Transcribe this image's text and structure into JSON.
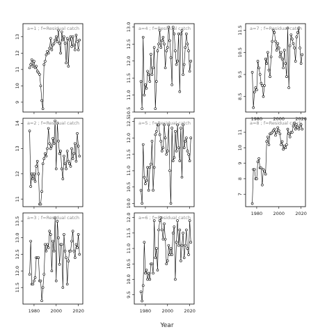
{
  "figure": {
    "xlabel": "Year",
    "panel_label_suffix": "f=Residual catch"
  },
  "chart_data": [
    {
      "type": "line",
      "label": "a=1 ; f=Residual catch",
      "xlim": [
        1970,
        2024
      ],
      "ylim": [
        8.4,
        13.8
      ],
      "xticks": [
        1980,
        2000,
        2020
      ],
      "yticks": [
        9,
        10,
        11,
        12,
        13
      ],
      "x": [
        1976,
        1977,
        1978,
        1979,
        1980,
        1981,
        1982,
        1983,
        1984,
        1985,
        1986,
        1987,
        1988,
        1989,
        1990,
        1991,
        1992,
        1993,
        1994,
        1995,
        1996,
        1997,
        1998,
        1999,
        2000,
        2001,
        2002,
        2003,
        2004,
        2005,
        2006,
        2007,
        2008,
        2009,
        2010,
        2011,
        2012,
        2013,
        2014,
        2015,
        2016,
        2017,
        2018,
        2019,
        2020,
        2021
      ],
      "y": [
        11.1,
        11.3,
        11.6,
        11.2,
        11.5,
        11.1,
        11.2,
        10.9,
        10.8,
        10.7,
        10.0,
        9.1,
        8.6,
        11.3,
        11.5,
        11.9,
        12.1,
        12.0,
        12.3,
        12.9,
        12.2,
        12.5,
        12.6,
        12.8,
        13.0,
        12.7,
        13.4,
        12.6,
        12.0,
        13.3,
        12.8,
        13.0,
        12.6,
        11.4,
        12.9,
        11.2,
        12.8,
        13.0,
        12.4,
        13.0,
        12.5,
        12.2,
        13.1,
        12.7,
        12.2,
        12.8
      ]
    },
    {
      "type": "line",
      "label": "a=4 ; f=Residual catch",
      "xlim": [
        1970,
        2024
      ],
      "ylim": [
        10.5,
        13.1
      ],
      "xticks": [
        1980,
        2000,
        2020
      ],
      "yticks": [
        10.5,
        11.0,
        11.5,
        12.0,
        12.5,
        13.0
      ],
      "x": [
        1976,
        1977,
        1978,
        1979,
        1980,
        1981,
        1982,
        1983,
        1984,
        1985,
        1986,
        1987,
        1988,
        1989,
        1990,
        1991,
        1992,
        1993,
        1994,
        1995,
        1996,
        1997,
        1998,
        1999,
        2000,
        2001,
        2002,
        2003,
        2004,
        2005,
        2006,
        2007,
        2008,
        2009,
        2010,
        2011,
        2012,
        2013,
        2014,
        2015,
        2016,
        2017,
        2018,
        2019,
        2020,
        2021
      ],
      "y": [
        11.4,
        10.6,
        12.7,
        11.0,
        11.3,
        11.2,
        11.7,
        11.6,
        11.4,
        12.2,
        11.6,
        11.8,
        12.4,
        10.6,
        11.4,
        12.3,
        12.5,
        12.9,
        12.4,
        12.6,
        12.7,
        12.5,
        11.8,
        12.3,
        12.4,
        13.0,
        12.6,
        12.1,
        11.3,
        13.0,
        12.8,
        12.3,
        11.9,
        12.0,
        12.8,
        11.1,
        12.8,
        12.9,
        11.6,
        11.9,
        12.4,
        12.8,
        12.5,
        12.3,
        11.7,
        12.0
      ]
    },
    {
      "type": "line",
      "label": "a=7 ; f=Residual catch",
      "xlim": [
        1970,
        2024
      ],
      "ylim": [
        7.8,
        11.8
      ],
      "xticks": [
        1980,
        2000,
        2020
      ],
      "yticks": [
        8.5,
        9.5,
        10.5,
        11.5
      ],
      "x": [
        1976,
        1977,
        1978,
        1979,
        1980,
        1981,
        1982,
        1983,
        1984,
        1985,
        1986,
        1987,
        1988,
        1989,
        1990,
        1991,
        1992,
        1993,
        1994,
        1995,
        1996,
        1997,
        1998,
        1999,
        2000,
        2001,
        2002,
        2003,
        2004,
        2005,
        2006,
        2007,
        2008,
        2009,
        2010,
        2011,
        2012,
        2013,
        2014,
        2015,
        2016,
        2017,
        2018,
        2019,
        2020,
        2021
      ],
      "y": [
        9.6,
        8.0,
        8.7,
        8.9,
        8.8,
        10.1,
        9.8,
        9.5,
        9.1,
        9.0,
        8.5,
        9.0,
        10.2,
        10.0,
        10.5,
        9.7,
        9.4,
        10.3,
        11.0,
        11.5,
        11.4,
        11.0,
        10.6,
        10.9,
        10.7,
        10.3,
        10.5,
        10.2,
        9.8,
        10.6,
        10.0,
        9.4,
        11.6,
        8.9,
        10.8,
        11.3,
        11.1,
        10.9,
        10.7,
        10.1,
        11.2,
        11.4,
        11.6,
        10.7,
        10.0,
        10.4
      ]
    },
    {
      "type": "line",
      "label": "a=2 ; f=Residual catch",
      "xlim": [
        1970,
        2024
      ],
      "ylim": [
        10.7,
        14.2
      ],
      "xticks": [
        1980,
        2000,
        2020
      ],
      "yticks": [
        11.0,
        12.0,
        13.0,
        14.0
      ],
      "x": [
        1976,
        1977,
        1978,
        1979,
        1980,
        1981,
        1982,
        1983,
        1984,
        1985,
        1986,
        1987,
        1988,
        1989,
        1990,
        1991,
        1992,
        1993,
        1994,
        1995,
        1996,
        1997,
        1998,
        1999,
        2000,
        2001,
        2002,
        2003,
        2004,
        2005,
        2006,
        2007,
        2008,
        2009,
        2010,
        2011,
        2012,
        2013,
        2014,
        2015,
        2016,
        2017,
        2018,
        2019,
        2020,
        2021
      ],
      "y": [
        13.7,
        11.5,
        12.0,
        11.8,
        12.0,
        11.7,
        12.3,
        12.5,
        12.0,
        10.8,
        10.8,
        11.3,
        12.4,
        12.6,
        12.8,
        12.7,
        13.0,
        13.8,
        13.2,
        13.0,
        13.1,
        13.4,
        13.2,
        14.1,
        12.2,
        14.0,
        13.3,
        12.8,
        12.9,
        12.2,
        11.8,
        12.7,
        12.4,
        12.2,
        12.9,
        12.5,
        12.4,
        12.3,
        13.0,
        12.6,
        12.8,
        13.2,
        12.5,
        13.6,
        13.1,
        12.7
      ]
    },
    {
      "type": "line",
      "label": "a=5 ; f=Residual catch",
      "xlim": [
        1970,
        2024
      ],
      "ylim": [
        9.9,
        12.6
      ],
      "xticks": [
        1980,
        2000,
        2020
      ],
      "yticks": [
        10.0,
        10.5,
        11.0,
        11.5,
        12.0,
        12.5
      ],
      "x": [
        1976,
        1977,
        1978,
        1979,
        1980,
        1981,
        1982,
        1983,
        1984,
        1985,
        1986,
        1987,
        1988,
        1989,
        1990,
        1991,
        1992,
        1993,
        1994,
        1995,
        1996,
        1997,
        1998,
        1999,
        2000,
        2001,
        2002,
        2003,
        2004,
        2005,
        2006,
        2007,
        2008,
        2009,
        2010,
        2011,
        2012,
        2013,
        2014,
        2015,
        2016,
        2017,
        2018,
        2019,
        2020,
        2021
      ],
      "y": [
        10.4,
        10.0,
        11.8,
        10.8,
        10.6,
        10.7,
        11.1,
        10.4,
        11.1,
        11.2,
        11.9,
        10.4,
        11.1,
        12.1,
        12.2,
        12.4,
        12.4,
        12.1,
        11.9,
        11.6,
        11.7,
        12.4,
        12.0,
        11.5,
        11.6,
        12.4,
        11.0,
        10.0,
        12.3,
        11.3,
        11.4,
        12.2,
        11.6,
        12.4,
        11.7,
        11.3,
        12.3,
        10.8,
        12.4,
        11.7,
        11.9,
        12.0,
        11.6,
        11.5,
        11.3,
        12.0
      ]
    },
    {
      "type": "line",
      "label": "a=8 ; f=Residual catch",
      "xlim": [
        1970,
        2024
      ],
      "ylim": [
        6.2,
        11.9
      ],
      "xticks": [
        1980,
        2000,
        2020
      ],
      "yticks": [
        7,
        8,
        9,
        10,
        11
      ],
      "x": [
        1976,
        1977,
        1978,
        1979,
        1980,
        1981,
        1982,
        1983,
        1984,
        1985,
        1986,
        1987,
        1988,
        1989,
        1990,
        1991,
        1992,
        1993,
        1994,
        1995,
        1996,
        1997,
        1998,
        1999,
        2000,
        2001,
        2002,
        2003,
        2004,
        2005,
        2006,
        2007,
        2008,
        2009,
        2010,
        2011,
        2012,
        2013,
        2014,
        2015,
        2016,
        2017,
        2018,
        2019,
        2020,
        2021
      ],
      "y": [
        6.4,
        8.6,
        8.6,
        8.0,
        8.0,
        9.1,
        9.3,
        8.7,
        8.7,
        7.6,
        8.6,
        8.5,
        8.3,
        10.4,
        10.7,
        10.2,
        10.9,
        10.9,
        11.0,
        11.1,
        11.2,
        10.8,
        11.0,
        11.3,
        11.1,
        10.9,
        10.2,
        10.4,
        9.9,
        10.1,
        10.0,
        10.2,
        11.2,
        10.9,
        10.7,
        11.0,
        11.0,
        11.4,
        11.6,
        11.2,
        11.5,
        11.3,
        11.2,
        11.4,
        11.5,
        11.2
      ]
    },
    {
      "type": "line",
      "label": "a=3 ; f=Residual catch",
      "xlim": [
        1970,
        2024
      ],
      "ylim": [
        11.0,
        13.75
      ],
      "xticks": [
        1980,
        2000,
        2020
      ],
      "yticks": [
        11.5,
        12.0,
        12.5,
        13.0,
        13.5
      ],
      "x": [
        1976,
        1977,
        1978,
        1979,
        1980,
        1981,
        1982,
        1983,
        1984,
        1985,
        1986,
        1987,
        1988,
        1989,
        1990,
        1991,
        1992,
        1993,
        1994,
        1995,
        1996,
        1997,
        1998,
        1999,
        2000,
        2001,
        2002,
        2003,
        2004,
        2005,
        2006,
        2007,
        2008,
        2009,
        2010,
        2011,
        2012,
        2013,
        2014,
        2015,
        2016,
        2017,
        2018,
        2019,
        2020,
        2021
      ],
      "y": [
        11.9,
        12.9,
        11.6,
        11.6,
        11.7,
        11.8,
        12.4,
        12.4,
        12.4,
        11.7,
        11.7,
        11.1,
        11.5,
        11.9,
        12.8,
        12.6,
        12.8,
        12.7,
        13.2,
        13.1,
        12.0,
        12.9,
        12.6,
        13.6,
        11.7,
        13.5,
        13.0,
        12.2,
        12.8,
        12.8,
        11.5,
        13.1,
        12.6,
        12.4,
        11.6,
        12.3,
        12.6,
        12.6,
        12.9,
        13.2,
        12.6,
        12.4,
        12.8,
        12.7,
        13.1,
        12.5
      ]
    },
    {
      "type": "line",
      "label": "a=6 ; f=Residual catch",
      "xlim": [
        1970,
        2024
      ],
      "ylim": [
        9.2,
        12.15
      ],
      "xticks": [
        1980,
        2000,
        2020
      ],
      "yticks": [
        9.5,
        10.0,
        10.5,
        11.0,
        11.5,
        12.0
      ],
      "x": [
        1976,
        1977,
        1978,
        1979,
        1980,
        1981,
        1982,
        1983,
        1984,
        1985,
        1986,
        1987,
        1988,
        1989,
        1990,
        1991,
        1992,
        1993,
        1994,
        1995,
        1996,
        1997,
        1998,
        1999,
        2000,
        2001,
        2002,
        2003,
        2004,
        2005,
        2006,
        2007,
        2008,
        2009,
        2010,
        2011,
        2012,
        2013,
        2014,
        2015,
        2016,
        2017,
        2018,
        2019,
        2020,
        2021
      ],
      "y": [
        9.6,
        9.3,
        9.8,
        11.2,
        10.2,
        10.3,
        10.0,
        10.2,
        10.0,
        10.5,
        10.5,
        10.2,
        11.9,
        10.7,
        11.0,
        10.3,
        11.6,
        11.9,
        12.0,
        11.6,
        11.3,
        11.8,
        11.3,
        10.5,
        10.6,
        11.1,
        10.8,
        11.0,
        10.8,
        11.5,
        11.7,
        10.0,
        11.2,
        11.9,
        11.1,
        11.6,
        10.6,
        11.1,
        11.5,
        10.7,
        11.1,
        11.6,
        11.0,
        10.8,
        11.9,
        11.2
      ]
    }
  ]
}
